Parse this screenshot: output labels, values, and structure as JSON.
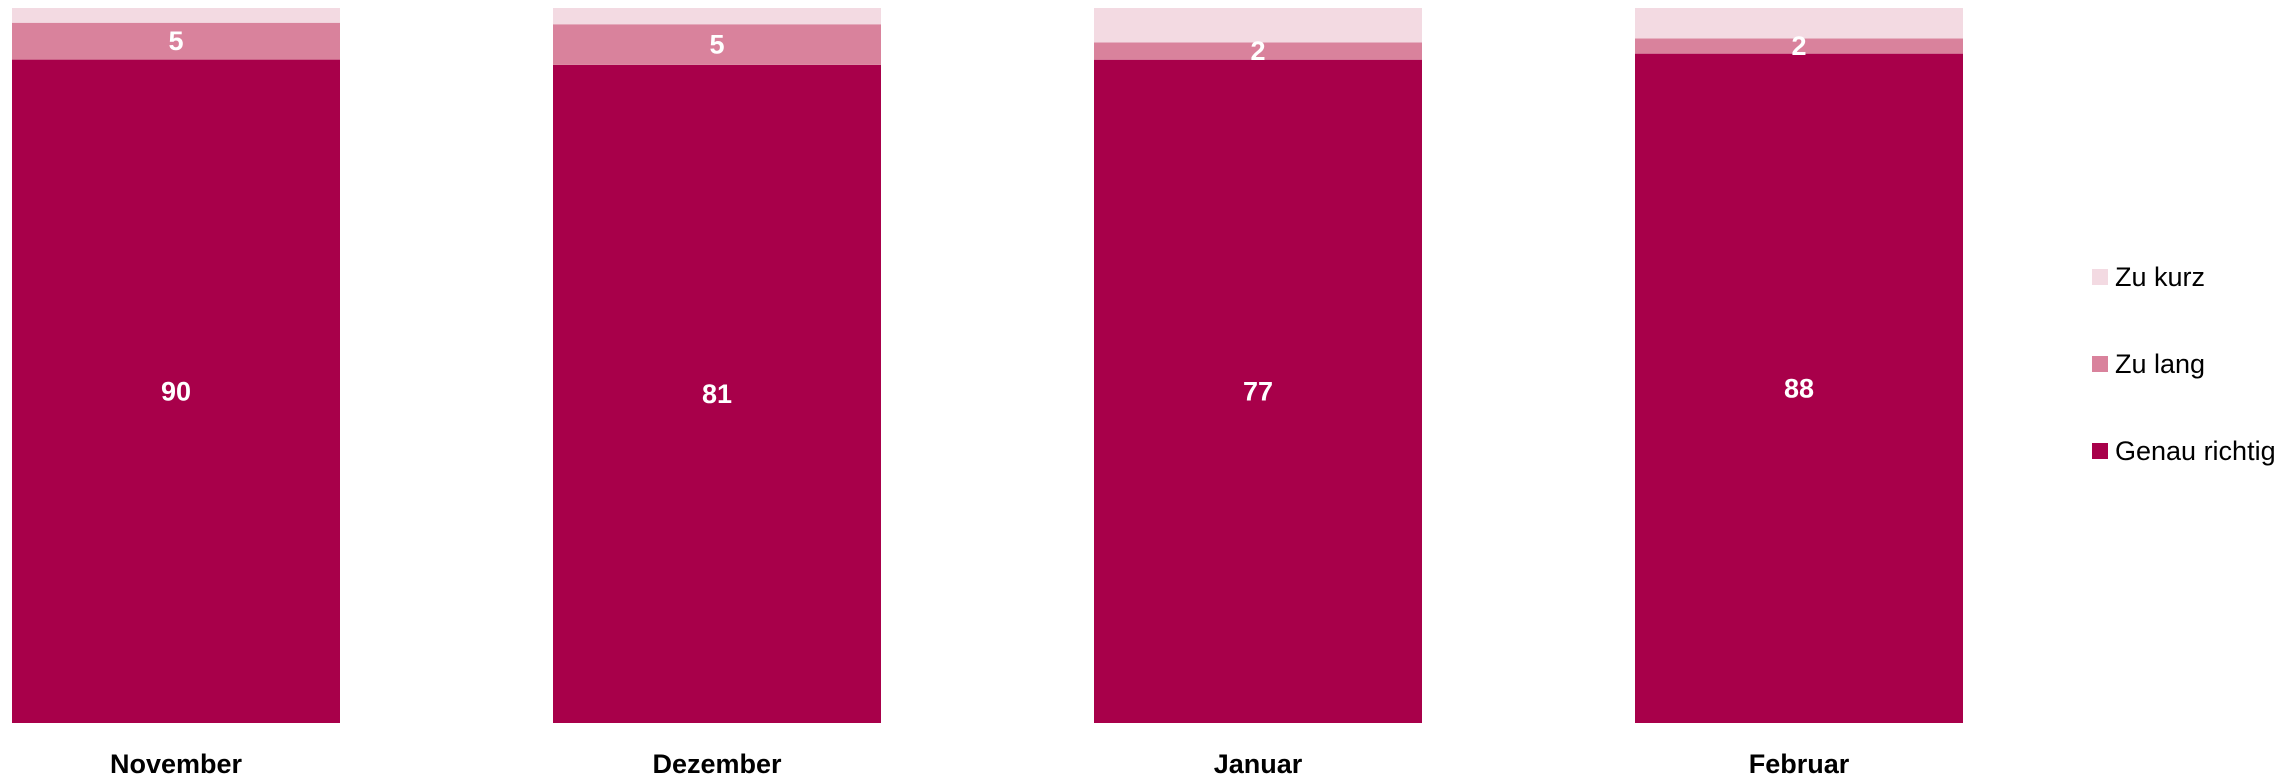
{
  "chart_data": {
    "type": "bar",
    "stacked": true,
    "categories": [
      "November",
      "Dezember",
      "Januar",
      "Februar"
    ],
    "series": [
      {
        "name": "Genau richtig",
        "values": [
          90,
          81,
          77,
          88
        ],
        "color": "#A8004A",
        "show_labels": [
          true,
          true,
          true,
          true
        ]
      },
      {
        "name": "Zu lang",
        "values": [
          5,
          5,
          2,
          2
        ],
        "color": "#D9829C",
        "show_labels": [
          true,
          true,
          true,
          true
        ]
      },
      {
        "name": "Zu kurz",
        "values": [
          2,
          2,
          4,
          4
        ],
        "color": "#F3DAE2",
        "show_labels": [
          false,
          false,
          false,
          false
        ]
      }
    ],
    "legend": {
      "position": "right",
      "order": [
        "Zu kurz",
        "Zu lang",
        "Genau richtig"
      ]
    },
    "grid": false
  }
}
